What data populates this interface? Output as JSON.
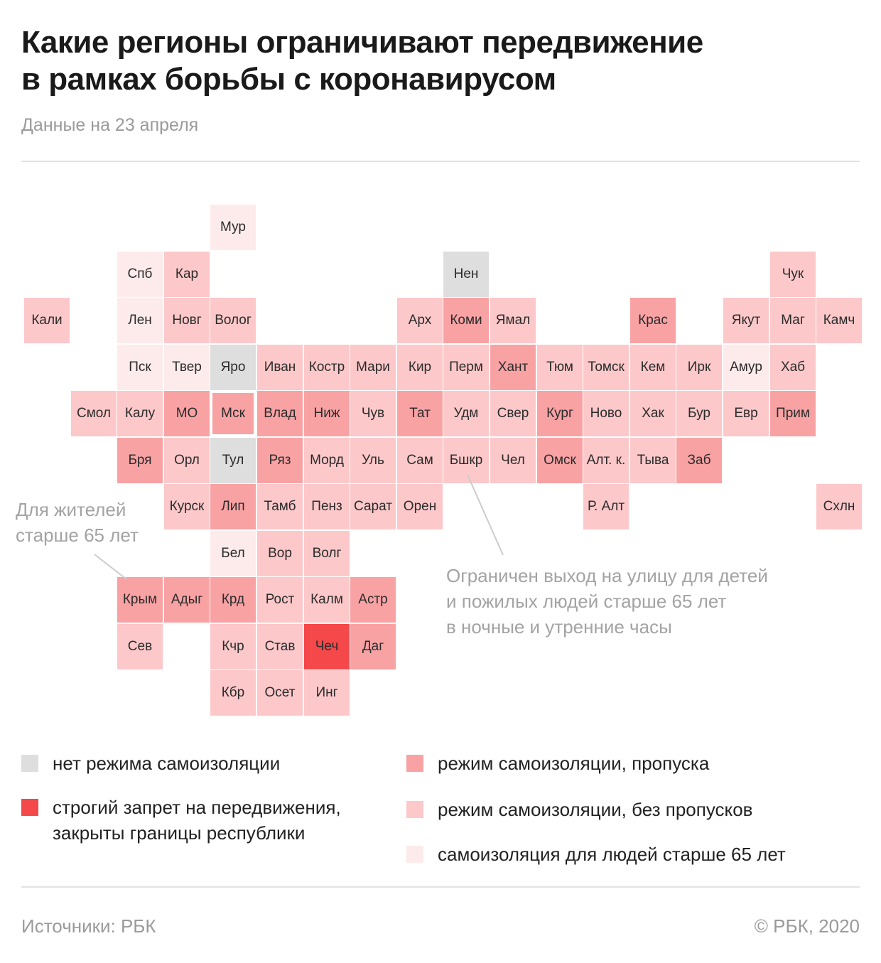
{
  "title": {
    "line1": "Какие регионы ограничивают передвижение",
    "line2": "в рамках борьбы с коронавирусом"
  },
  "subtitle": "Данные на 23 апреля",
  "colors": {
    "none": "#dedede",
    "strict": "#f4484a",
    "passes": "#f8a2a4",
    "no_passes": "#fcc8ca",
    "elderly": "#fdebec"
  },
  "legend": [
    {
      "key": "none",
      "label": [
        "нет режима самоизоляции"
      ]
    },
    {
      "key": "strict",
      "label": [
        "строгий запрет на передвижения,",
        "закрыты границы республики"
      ]
    },
    {
      "key": "passes",
      "label": [
        "режим самоизоляции, пропуска"
      ]
    },
    {
      "key": "no_passes",
      "label": [
        "режим самоизоляции, без пропусков"
      ]
    },
    {
      "key": "elderly",
      "label": [
        "самоизоляция для людей старше 65 лет"
      ]
    }
  ],
  "regions": [
    {
      "label": "Мур",
      "col": 4,
      "row": 0,
      "status": "elderly"
    },
    {
      "label": "Спб",
      "col": 2,
      "row": 1,
      "status": "elderly"
    },
    {
      "label": "Кар",
      "col": 3,
      "row": 1,
      "status": "no_passes"
    },
    {
      "label": "Нен",
      "col": 9,
      "row": 1,
      "status": "none"
    },
    {
      "label": "Чук",
      "col": 16,
      "row": 1,
      "status": "no_passes"
    },
    {
      "label": "Кали",
      "col": 0,
      "row": 2,
      "status": "no_passes"
    },
    {
      "label": "Лен",
      "col": 2,
      "row": 2,
      "status": "elderly"
    },
    {
      "label": "Новг",
      "col": 3,
      "row": 2,
      "status": "no_passes"
    },
    {
      "label": "Волог",
      "col": 4,
      "row": 2,
      "status": "no_passes"
    },
    {
      "label": "Арх",
      "col": 8,
      "row": 2,
      "status": "no_passes"
    },
    {
      "label": "Коми",
      "col": 9,
      "row": 2,
      "status": "passes"
    },
    {
      "label": "Ямал",
      "col": 10,
      "row": 2,
      "status": "no_passes"
    },
    {
      "label": "Крас",
      "col": 13,
      "row": 2,
      "status": "passes"
    },
    {
      "label": "Якут",
      "col": 15,
      "row": 2,
      "status": "no_passes"
    },
    {
      "label": "Маг",
      "col": 16,
      "row": 2,
      "status": "no_passes"
    },
    {
      "label": "Камч",
      "col": 17,
      "row": 2,
      "status": "no_passes"
    },
    {
      "label": "Пск",
      "col": 2,
      "row": 3,
      "status": "elderly"
    },
    {
      "label": "Твер",
      "col": 3,
      "row": 3,
      "status": "elderly"
    },
    {
      "label": "Яро",
      "col": 4,
      "row": 3,
      "status": "none"
    },
    {
      "label": "Иван",
      "col": 5,
      "row": 3,
      "status": "no_passes"
    },
    {
      "label": "Костр",
      "col": 6,
      "row": 3,
      "status": "no_passes"
    },
    {
      "label": "Мари",
      "col": 7,
      "row": 3,
      "status": "no_passes"
    },
    {
      "label": "Кир",
      "col": 8,
      "row": 3,
      "status": "no_passes"
    },
    {
      "label": "Перм",
      "col": 9,
      "row": 3,
      "status": "no_passes"
    },
    {
      "label": "Хант",
      "col": 10,
      "row": 3,
      "status": "passes"
    },
    {
      "label": "Тюм",
      "col": 11,
      "row": 3,
      "status": "no_passes"
    },
    {
      "label": "Томск",
      "col": 12,
      "row": 3,
      "status": "no_passes"
    },
    {
      "label": "Кем",
      "col": 13,
      "row": 3,
      "status": "no_passes"
    },
    {
      "label": "Ирк",
      "col": 14,
      "row": 3,
      "status": "no_passes"
    },
    {
      "label": "Амур",
      "col": 15,
      "row": 3,
      "status": "elderly"
    },
    {
      "label": "Хаб",
      "col": 16,
      "row": 3,
      "status": "no_passes"
    },
    {
      "label": "Смол",
      "col": 1,
      "row": 4,
      "status": "no_passes"
    },
    {
      "label": "Калу",
      "col": 2,
      "row": 4,
      "status": "no_passes"
    },
    {
      "label": "МО",
      "col": 3,
      "row": 4,
      "status": "passes"
    },
    {
      "label": "Мск",
      "col": 4,
      "row": 4,
      "status": "passes",
      "outlined": true
    },
    {
      "label": "Влад",
      "col": 5,
      "row": 4,
      "status": "passes"
    },
    {
      "label": "Ниж",
      "col": 6,
      "row": 4,
      "status": "passes"
    },
    {
      "label": "Чув",
      "col": 7,
      "row": 4,
      "status": "no_passes"
    },
    {
      "label": "Тат",
      "col": 8,
      "row": 4,
      "status": "passes"
    },
    {
      "label": "Удм",
      "col": 9,
      "row": 4,
      "status": "no_passes"
    },
    {
      "label": "Свер",
      "col": 10,
      "row": 4,
      "status": "no_passes"
    },
    {
      "label": "Кург",
      "col": 11,
      "row": 4,
      "status": "passes"
    },
    {
      "label": "Ново",
      "col": 12,
      "row": 4,
      "status": "no_passes"
    },
    {
      "label": "Хак",
      "col": 13,
      "row": 4,
      "status": "no_passes"
    },
    {
      "label": "Бур",
      "col": 14,
      "row": 4,
      "status": "no_passes"
    },
    {
      "label": "Евр",
      "col": 15,
      "row": 4,
      "status": "no_passes"
    },
    {
      "label": "Прим",
      "col": 16,
      "row": 4,
      "status": "passes"
    },
    {
      "label": "Бря",
      "col": 2,
      "row": 5,
      "status": "passes"
    },
    {
      "label": "Орл",
      "col": 3,
      "row": 5,
      "status": "no_passes"
    },
    {
      "label": "Тул",
      "col": 4,
      "row": 5,
      "status": "none"
    },
    {
      "label": "Ряз",
      "col": 5,
      "row": 5,
      "status": "passes"
    },
    {
      "label": "Морд",
      "col": 6,
      "row": 5,
      "status": "no_passes"
    },
    {
      "label": "Уль",
      "col": 7,
      "row": 5,
      "status": "no_passes"
    },
    {
      "label": "Сам",
      "col": 8,
      "row": 5,
      "status": "no_passes"
    },
    {
      "label": "Бшкр",
      "col": 9,
      "row": 5,
      "status": "no_passes"
    },
    {
      "label": "Чел",
      "col": 10,
      "row": 5,
      "status": "no_passes"
    },
    {
      "label": "Омск",
      "col": 11,
      "row": 5,
      "status": "passes"
    },
    {
      "label": "Алт. к.",
      "col": 12,
      "row": 5,
      "status": "no_passes"
    },
    {
      "label": "Тыва",
      "col": 13,
      "row": 5,
      "status": "no_passes"
    },
    {
      "label": "Заб",
      "col": 14,
      "row": 5,
      "status": "passes"
    },
    {
      "label": "Курск",
      "col": 3,
      "row": 6,
      "status": "no_passes"
    },
    {
      "label": "Лип",
      "col": 4,
      "row": 6,
      "status": "passes"
    },
    {
      "label": "Тамб",
      "col": 5,
      "row": 6,
      "status": "no_passes"
    },
    {
      "label": "Пенз",
      "col": 6,
      "row": 6,
      "status": "no_passes"
    },
    {
      "label": "Сарат",
      "col": 7,
      "row": 6,
      "status": "no_passes"
    },
    {
      "label": "Орен",
      "col": 8,
      "row": 6,
      "status": "no_passes"
    },
    {
      "label": "Р. Алт",
      "col": 12,
      "row": 6,
      "status": "no_passes"
    },
    {
      "label": "Схлн",
      "col": 17,
      "row": 6,
      "status": "no_passes"
    },
    {
      "label": "Бел",
      "col": 4,
      "row": 7,
      "status": "elderly"
    },
    {
      "label": "Вор",
      "col": 5,
      "row": 7,
      "status": "no_passes"
    },
    {
      "label": "Волг",
      "col": 6,
      "row": 7,
      "status": "no_passes"
    },
    {
      "label": "Крым",
      "col": 2,
      "row": 8,
      "status": "passes"
    },
    {
      "label": "Адыг",
      "col": 3,
      "row": 8,
      "status": "passes"
    },
    {
      "label": "Крд",
      "col": 4,
      "row": 8,
      "status": "passes"
    },
    {
      "label": "Рост",
      "col": 5,
      "row": 8,
      "status": "no_passes"
    },
    {
      "label": "Калм",
      "col": 6,
      "row": 8,
      "status": "no_passes"
    },
    {
      "label": "Астр",
      "col": 7,
      "row": 8,
      "status": "passes"
    },
    {
      "label": "Сев",
      "col": 2,
      "row": 9,
      "status": "no_passes"
    },
    {
      "label": "Кчр",
      "col": 4,
      "row": 9,
      "status": "no_passes"
    },
    {
      "label": "Став",
      "col": 5,
      "row": 9,
      "status": "no_passes"
    },
    {
      "label": "Чеч",
      "col": 6,
      "row": 9,
      "status": "strict"
    },
    {
      "label": "Даг",
      "col": 7,
      "row": 9,
      "status": "passes"
    },
    {
      "label": "Кбр",
      "col": 4,
      "row": 10,
      "status": "no_passes"
    },
    {
      "label": "Осет",
      "col": 5,
      "row": 10,
      "status": "no_passes"
    },
    {
      "label": "Инг",
      "col": 6,
      "row": 10,
      "status": "no_passes"
    }
  ],
  "annotations": {
    "elderly_note": [
      "Для жителей",
      "старше 65 лет"
    ],
    "bashkir_note": [
      "Ограничен выход на улицу для детей",
      "и пожилых людей старше 65 лет",
      "в ночные и утренние часы"
    ]
  },
  "footer": {
    "source": "Источники: РБК",
    "copyright": "© РБК, 2020"
  }
}
